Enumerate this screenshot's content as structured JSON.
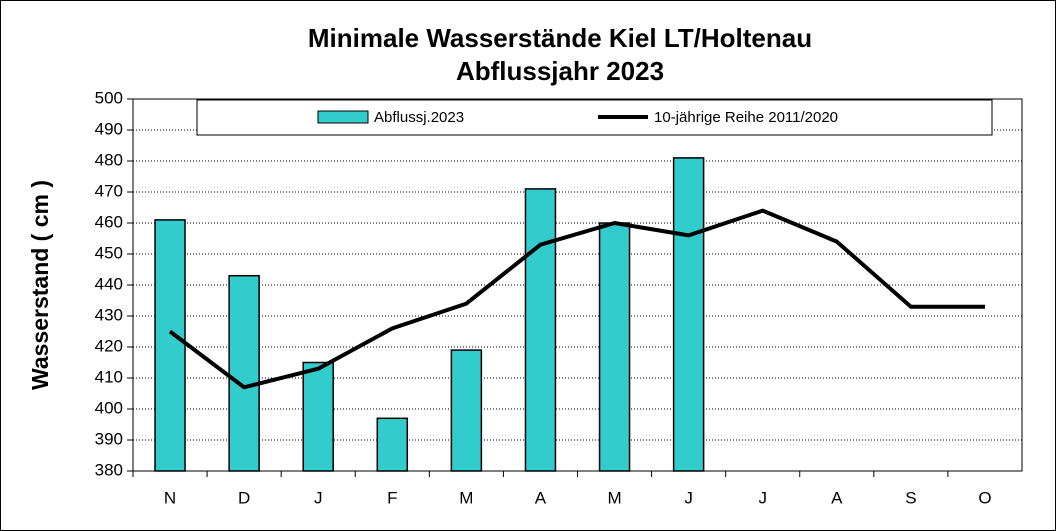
{
  "chart_data": {
    "type": "bar",
    "title": "Minimale Wasserstände Kiel LT/Holtenau",
    "subtitle": "Abflussjahr 2023",
    "y_label": "Wasserstand ( cm )",
    "categories": [
      "N",
      "D",
      "J",
      "F",
      "M",
      "A",
      "M",
      "J",
      "J",
      "A",
      "S",
      "O"
    ],
    "series": [
      {
        "name": "Abflussj.2023",
        "type": "bar",
        "color": "#33cccc",
        "values": [
          461,
          443,
          415,
          397,
          419,
          471,
          460,
          481,
          null,
          null,
          null,
          null
        ]
      },
      {
        "name": "10-jährige Reihe  2011/2020",
        "type": "line",
        "color": "#000000",
        "values": [
          425,
          407,
          413,
          426,
          434,
          453,
          460,
          456,
          464,
          454,
          433,
          433
        ]
      }
    ],
    "ylim": [
      380,
      500
    ],
    "yticks": [
      380,
      390,
      400,
      410,
      420,
      430,
      440,
      450,
      460,
      470,
      480,
      490,
      500
    ],
    "grid": true,
    "legend": "top"
  }
}
